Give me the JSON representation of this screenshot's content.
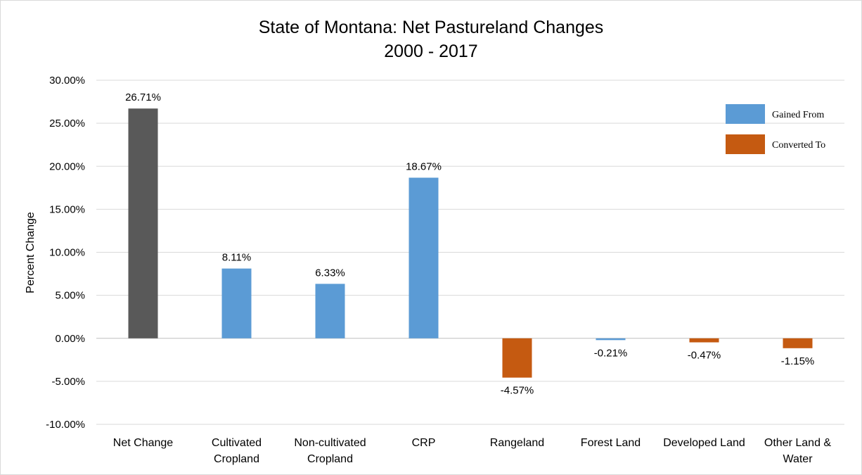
{
  "chart_data": {
    "type": "bar",
    "title": [
      "State of Montana: Net Pastureland Changes",
      "2000 - 2017"
    ],
    "ylabel": "Percent Change",
    "xlabel": "",
    "ylim": [
      -10,
      30
    ],
    "yticks": [
      30,
      25,
      20,
      15,
      10,
      5,
      0,
      -5,
      -10
    ],
    "ytick_labels": [
      "30.00%",
      "25.00%",
      "20.00%",
      "15.00%",
      "10.00%",
      "5.00%",
      "0.00%",
      "-5.00%",
      "-10.00%"
    ],
    "grid": true,
    "legend_position": "top-right",
    "categories": [
      [
        "Net Change"
      ],
      [
        "Cultivated",
        "Cropland"
      ],
      [
        "Non-cultivated",
        "Cropland"
      ],
      [
        "CRP"
      ],
      [
        "Rangeland"
      ],
      [
        "Forest Land"
      ],
      [
        "Developed Land"
      ],
      [
        "Other Land &",
        "Water"
      ]
    ],
    "values": [
      26.71,
      8.11,
      6.33,
      18.67,
      -4.57,
      -0.21,
      -0.47,
      -1.15
    ],
    "value_labels": [
      "26.71%",
      "8.11%",
      "6.33%",
      "18.67%",
      "-4.57%",
      "-0.21%",
      "-0.47%",
      "-1.15%"
    ],
    "bar_groups": [
      "net",
      "gained",
      "gained",
      "gained",
      "converted",
      "gained",
      "converted",
      "converted"
    ],
    "colors": {
      "net": "#595959",
      "gained": "#5b9bd5",
      "converted": "#c55a11"
    },
    "legend": [
      {
        "key": "gained",
        "label": "Gained From"
      },
      {
        "key": "converted",
        "label": "Converted To"
      }
    ]
  }
}
